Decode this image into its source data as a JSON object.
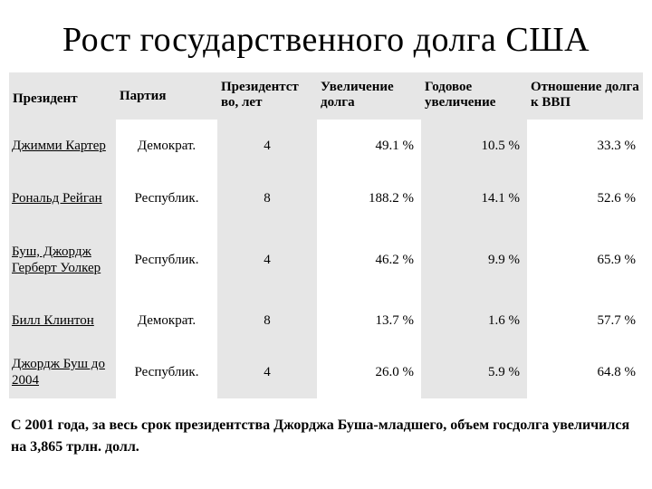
{
  "title": "Рост государственного долга США",
  "table": {
    "headers": {
      "president": "Президент",
      "party": "Партия",
      "years": "Президентст во, лет",
      "increase": "Увеличение долга",
      "annual": "Годовое увеличение",
      "ratio": "Отношение долга к ВВП"
    },
    "rows": [
      {
        "president": "Джимми Картер",
        "party": "Демократ.",
        "years": "4",
        "increase": "49.1 %",
        "annual": "10.5 %",
        "ratio": "33.3 %"
      },
      {
        "president": "Рональд Рейган",
        "party": "Республик.",
        "years": "8",
        "increase": "188.2 %",
        "annual": "14.1 %",
        "ratio": "52.6 %"
      },
      {
        "president": "Буш, Джордж Герберт Уолкер",
        "party": "Республик.",
        "years": "4",
        "increase": "46.2 %",
        "annual": "9.9 %",
        "ratio": "65.9 %"
      },
      {
        "president": "Билл Клинтон",
        "party": "Демократ.",
        "years": "8",
        "increase": "13.7 %",
        "annual": "1.6 %",
        "ratio": "57.7 %"
      },
      {
        "president": "Джордж Буш до 2004",
        "party": "Республик.",
        "years": "4",
        "increase": "26.0 %",
        "annual": "5.9 %",
        "ratio": "64.8 %"
      }
    ]
  },
  "footnote": "С 2001 года, за весь срок президентства Джорджа Буша-младшего, объем госдолга увеличился на 3,865 трлн. долл.",
  "colors": {
    "shade": "#e6e6e6",
    "text": "#000000",
    "background": "#ffffff"
  }
}
